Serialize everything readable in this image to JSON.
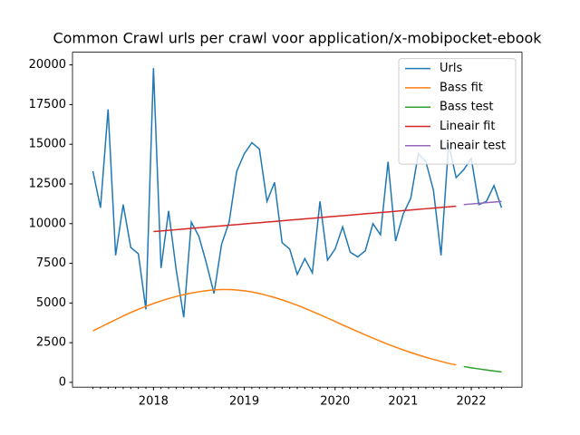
{
  "chart_data": {
    "type": "line",
    "title": "Common Crawl urls per crawl voor application/x-mobipocket-ebook",
    "categories": [
      null,
      null,
      null,
      null,
      null,
      null,
      null,
      null,
      "2018",
      null,
      null,
      null,
      null,
      null,
      null,
      null,
      null,
      null,
      null,
      null,
      "2019",
      null,
      null,
      null,
      null,
      null,
      null,
      null,
      null,
      null,
      null,
      null,
      "2020",
      null,
      null,
      null,
      null,
      null,
      null,
      null,
      null,
      "2021",
      null,
      null,
      null,
      null,
      null,
      null,
      null,
      null,
      "2022",
      null,
      null,
      null,
      null
    ],
    "series": [
      {
        "name": "Urls",
        "color": "#1f77b4",
        "values": [
          13300,
          11000,
          17200,
          8000,
          11200,
          8500,
          8100,
          4600,
          19800,
          7200,
          10800,
          7100,
          4100,
          10100,
          9200,
          7500,
          5600,
          8700,
          10100,
          13300,
          14400,
          15100,
          14700,
          11400,
          12600,
          8800,
          8400,
          6800,
          7800,
          6900,
          11400,
          7700,
          8400,
          9800,
          8200,
          7900,
          8300,
          10000,
          9300,
          13900,
          8900,
          10600,
          11600,
          14400,
          13900,
          12100,
          8000,
          15000,
          12900,
          13400,
          14100,
          11200,
          11400,
          12400,
          11000
        ]
      },
      {
        "name": "Bass fit",
        "color": "#ff7f0e",
        "values": [
          3250,
          3480,
          3720,
          3950,
          4180,
          4400,
          4600,
          4790,
          4970,
          5130,
          5280,
          5410,
          5530,
          5630,
          5710,
          5780,
          5830,
          5850,
          5850,
          5820,
          5770,
          5700,
          5600,
          5480,
          5350,
          5200,
          5030,
          4860,
          4670,
          4470,
          4260,
          4050,
          3840,
          3620,
          3410,
          3200,
          2990,
          2790,
          2590,
          2400,
          2220,
          2050,
          1880,
          1730,
          1580,
          1450,
          1320,
          1200,
          1100,
          null,
          null,
          null,
          null,
          null,
          null
        ]
      },
      {
        "name": "Bass test",
        "color": "#2ca02c",
        "values": [
          null,
          null,
          null,
          null,
          null,
          null,
          null,
          null,
          null,
          null,
          null,
          null,
          null,
          null,
          null,
          null,
          null,
          null,
          null,
          null,
          null,
          null,
          null,
          null,
          null,
          null,
          null,
          null,
          null,
          null,
          null,
          null,
          null,
          null,
          null,
          null,
          null,
          null,
          null,
          null,
          null,
          null,
          null,
          null,
          null,
          null,
          null,
          null,
          null,
          1000,
          920,
          850,
          780,
          720,
          660
        ]
      },
      {
        "name": "Lineair fit",
        "color": "#d62728",
        "values": [
          null,
          null,
          null,
          null,
          null,
          null,
          null,
          null,
          9500,
          9540,
          9580,
          9620,
          9660,
          9700,
          9740,
          9780,
          9820,
          9860,
          9900,
          9940,
          9980,
          10020,
          10060,
          10100,
          10140,
          10180,
          10220,
          10260,
          10300,
          10340,
          10380,
          10420,
          10460,
          10500,
          10540,
          10580,
          10620,
          10660,
          10700,
          10740,
          10780,
          10820,
          10860,
          10900,
          10940,
          10980,
          11020,
          11060,
          11100,
          null,
          null,
          null,
          null,
          null,
          null
        ]
      },
      {
        "name": "Lineair test",
        "color": "#9467bd",
        "values": [
          null,
          null,
          null,
          null,
          null,
          null,
          null,
          null,
          null,
          null,
          null,
          null,
          null,
          null,
          null,
          null,
          null,
          null,
          null,
          null,
          null,
          null,
          null,
          null,
          null,
          null,
          null,
          null,
          null,
          null,
          null,
          null,
          null,
          null,
          null,
          null,
          null,
          null,
          null,
          null,
          null,
          null,
          null,
          null,
          null,
          null,
          null,
          null,
          null,
          11200,
          11240,
          11280,
          11320,
          11360,
          11400
        ]
      }
    ],
    "ylim": [
      -300,
      20800
    ],
    "yticks": [
      0,
      2500,
      5000,
      7500,
      10000,
      12500,
      15000,
      17500,
      20000
    ],
    "legend": "upper right"
  }
}
